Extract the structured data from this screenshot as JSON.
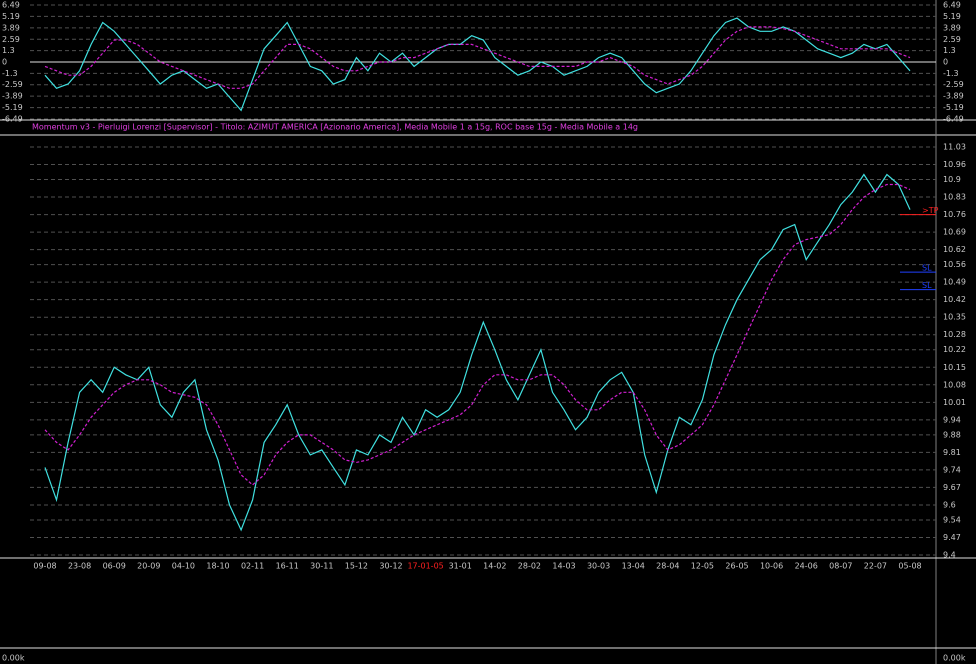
{
  "chart_data": [
    {
      "type": "line",
      "panel": "momentum",
      "ylim": [
        -6.49,
        6.49
      ],
      "yticks": [
        6.49,
        5.19,
        3.89,
        2.59,
        1.3,
        {
          "value": 0,
          "label": "0"
        },
        -1.3,
        -2.59,
        -3.89,
        -5.19,
        -6.49
      ],
      "grid": true,
      "series": [
        {
          "name": "ROC",
          "color": "#40e0e0",
          "values": [
            -1.5,
            -3.0,
            -2.5,
            -1.0,
            2.0,
            4.5,
            3.5,
            2.0,
            0.5,
            -1.0,
            -2.5,
            -1.5,
            -1.0,
            -2.0,
            -3.0,
            -2.5,
            -4.0,
            -5.5,
            -2.0,
            1.5,
            3.0,
            4.5,
            2.0,
            -0.5,
            -1.0,
            -2.5,
            -2.0,
            0.5,
            -1.0,
            1.0,
            0.0,
            1.0,
            -0.5,
            0.5,
            1.5,
            2.0,
            2.0,
            3.0,
            2.5,
            0.5,
            -0.5,
            -1.5,
            -1.0,
            0.0,
            -0.5,
            -1.5,
            -1.0,
            -0.5,
            0.5,
            1.0,
            0.5,
            -1.0,
            -2.5,
            -3.5,
            -3.0,
            -2.5,
            -1.0,
            1.0,
            3.0,
            4.5,
            5.0,
            4.0,
            3.5,
            3.5,
            4.0,
            3.5,
            2.5,
            1.5,
            1.0,
            0.5,
            1.0,
            2.0,
            1.5,
            2.0,
            0.5,
            -1.0
          ]
        },
        {
          "name": "MA",
          "color": "#d020d0",
          "dashed": true,
          "values": [
            -0.5,
            -1.0,
            -1.5,
            -1.5,
            -0.5,
            1.0,
            2.5,
            2.5,
            2.0,
            1.0,
            0.0,
            -0.5,
            -1.0,
            -1.5,
            -2.0,
            -2.5,
            -3.0,
            -3.0,
            -2.5,
            -1.0,
            0.5,
            2.0,
            2.0,
            1.5,
            0.5,
            -0.5,
            -1.0,
            -1.0,
            -0.5,
            0.0,
            0.0,
            0.5,
            0.5,
            1.0,
            1.5,
            2.0,
            2.0,
            2.0,
            1.5,
            1.0,
            0.5,
            0.0,
            -0.5,
            -0.5,
            -0.5,
            -0.5,
            -0.5,
            0.0,
            0.0,
            0.5,
            0.0,
            -0.5,
            -1.5,
            -2.0,
            -2.5,
            -2.0,
            -1.5,
            -0.5,
            1.0,
            2.5,
            3.5,
            4.0,
            4.0,
            4.0,
            3.8,
            3.5,
            3.0,
            2.5,
            2.0,
            1.5,
            1.5,
            1.5,
            1.5,
            1.5,
            1.0,
            0.5
          ]
        }
      ]
    },
    {
      "type": "line",
      "panel": "price",
      "title": "Momentum  v3  -  Pierluigi Lorenzi  [Supervisor]  -  Titolo:  AZIMUT AMERICA  [Azionario America],   Media Mobile 1 a 15g,   ROC base 15g - Media Mobile a 14g",
      "categories": [
        "09-08",
        null,
        null,
        "23-08",
        null,
        null,
        "06-09",
        null,
        null,
        "20-09",
        null,
        null,
        "04-10",
        null,
        null,
        "18-10",
        null,
        null,
        "02-11",
        null,
        null,
        "16-11",
        null,
        null,
        "30-11",
        null,
        null,
        "15-12",
        null,
        null,
        "30-12",
        null,
        null,
        "17-01-05",
        null,
        null,
        "31-01",
        null,
        null,
        "14-02",
        null,
        null,
        "28-02",
        null,
        null,
        "14-03",
        null,
        null,
        "30-03",
        null,
        null,
        "13-04",
        null,
        null,
        "28-04",
        null,
        null,
        "12-05",
        null,
        null,
        "26-05",
        null,
        null,
        "10-06",
        null,
        null,
        "24-06",
        null,
        null,
        "08-07",
        null,
        null,
        "22-07",
        null,
        null,
        "05-08"
      ],
      "ylim": [
        9.4,
        11.03
      ],
      "yticks": [
        11.03,
        10.96,
        10.9,
        10.83,
        10.76,
        10.69,
        10.62,
        10.56,
        10.49,
        10.42,
        10.35,
        10.28,
        10.22,
        10.15,
        10.08,
        10.01,
        9.94,
        9.88,
        9.81,
        9.74,
        9.67,
        9.6,
        9.54,
        9.47,
        9.4
      ],
      "grid": true,
      "year_label_color": "#ff2020",
      "series": [
        {
          "name": "Prezzo",
          "color": "#40e0e0",
          "values": [
            9.75,
            9.62,
            9.85,
            10.05,
            10.1,
            10.05,
            10.15,
            10.12,
            10.1,
            10.15,
            10.0,
            9.95,
            10.05,
            10.1,
            9.9,
            9.78,
            9.6,
            9.5,
            9.62,
            9.85,
            9.92,
            10.0,
            9.88,
            9.8,
            9.82,
            9.75,
            9.68,
            9.82,
            9.8,
            9.88,
            9.85,
            9.95,
            9.88,
            9.98,
            9.95,
            9.98,
            10.05,
            10.2,
            10.33,
            10.22,
            10.1,
            10.02,
            10.12,
            10.22,
            10.05,
            9.98,
            9.9,
            9.95,
            10.05,
            10.1,
            10.13,
            10.05,
            9.8,
            9.65,
            9.82,
            9.95,
            9.92,
            10.02,
            10.2,
            10.32,
            10.42,
            10.5,
            10.58,
            10.62,
            10.7,
            10.72,
            10.58,
            10.65,
            10.72,
            10.8,
            10.85,
            10.92,
            10.85,
            10.92,
            10.88,
            10.78
          ]
        },
        {
          "name": "Media",
          "color": "#d020d0",
          "dashed": true,
          "values": [
            9.9,
            9.85,
            9.82,
            9.88,
            9.95,
            10.0,
            10.05,
            10.08,
            10.1,
            10.1,
            10.08,
            10.05,
            10.04,
            10.03,
            10.0,
            9.92,
            9.82,
            9.72,
            9.68,
            9.72,
            9.8,
            9.85,
            9.88,
            9.88,
            9.85,
            9.82,
            9.78,
            9.77,
            9.78,
            9.8,
            9.82,
            9.85,
            9.88,
            9.9,
            9.92,
            9.94,
            9.96,
            10.0,
            10.08,
            10.12,
            10.12,
            10.1,
            10.1,
            10.12,
            10.12,
            10.08,
            10.02,
            9.98,
            9.98,
            10.02,
            10.05,
            10.05,
            9.98,
            9.88,
            9.82,
            9.84,
            9.88,
            9.92,
            10.0,
            10.1,
            10.2,
            10.3,
            10.4,
            10.5,
            10.58,
            10.64,
            10.66,
            10.67,
            10.68,
            10.72,
            10.78,
            10.83,
            10.86,
            10.88,
            10.88,
            10.86
          ]
        }
      ],
      "levels": [
        {
          "label": ">TP",
          "value": 10.76,
          "color": "#ff2020"
        },
        {
          "label": "SL",
          "value": 10.53,
          "color": "#2040ff"
        },
        {
          "label": "SL",
          "value": 10.46,
          "color": "#2040ff"
        }
      ],
      "volume_label": "0.00k"
    }
  ]
}
